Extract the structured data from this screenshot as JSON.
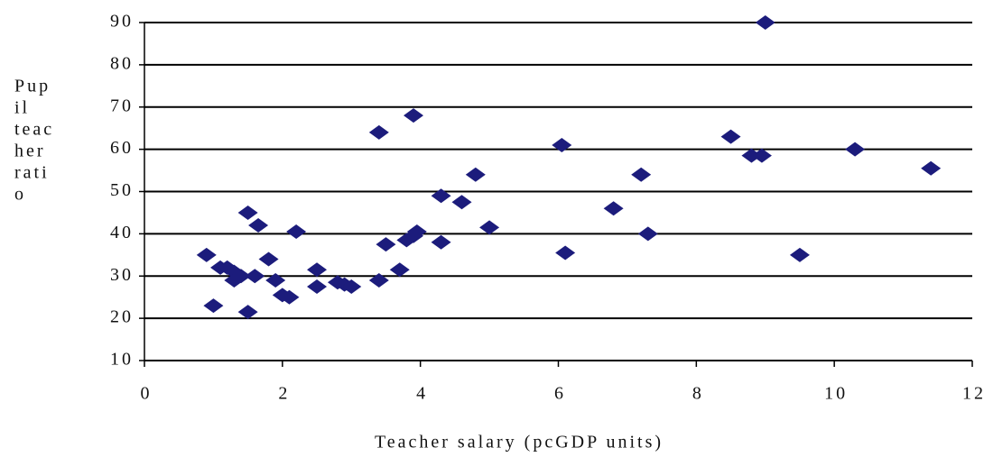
{
  "chart_data": {
    "type": "scatter",
    "x_label": "Teacher salary (pcGDP units)",
    "y_label_lines": [
      "Pup",
      "il",
      "teac",
      "her",
      "rati",
      "o"
    ],
    "color": "#1c1c7c",
    "grid": true,
    "xlim": [
      0,
      12
    ],
    "xticks": [
      0,
      2,
      4,
      6,
      8,
      10,
      12
    ],
    "ylim": [
      10,
      90
    ],
    "yticks": [
      10,
      20,
      30,
      40,
      50,
      60,
      70,
      80,
      90
    ],
    "x": [
      0.9,
      1.0,
      1.1,
      1.2,
      1.3,
      1.3,
      1.4,
      1.5,
      1.5,
      1.6,
      1.65,
      1.8,
      1.9,
      2.0,
      2.1,
      2.2,
      2.5,
      2.5,
      2.8,
      2.9,
      3.0,
      3.4,
      3.4,
      3.5,
      3.7,
      3.8,
      3.9,
      3.95,
      3.9,
      4.3,
      4.3,
      4.6,
      4.8,
      5.0,
      6.05,
      6.1,
      6.8,
      7.2,
      7.3,
      8.5,
      8.8,
      8.95,
      9.0,
      9.5,
      10.3,
      11.4
    ],
    "values": [
      35,
      23,
      32,
      32,
      31,
      29,
      30,
      45,
      21.5,
      30,
      42,
      34,
      29,
      25.5,
      25,
      40.5,
      31.5,
      27.5,
      28.5,
      28,
      27.5,
      64,
      29,
      37.5,
      31.5,
      38.5,
      39.5,
      40.5,
      68,
      49,
      38,
      47.5,
      54,
      41.5,
      61,
      35.5,
      46,
      54,
      40,
      63,
      58.5,
      58.5,
      90,
      35,
      60,
      55.5
    ]
  }
}
